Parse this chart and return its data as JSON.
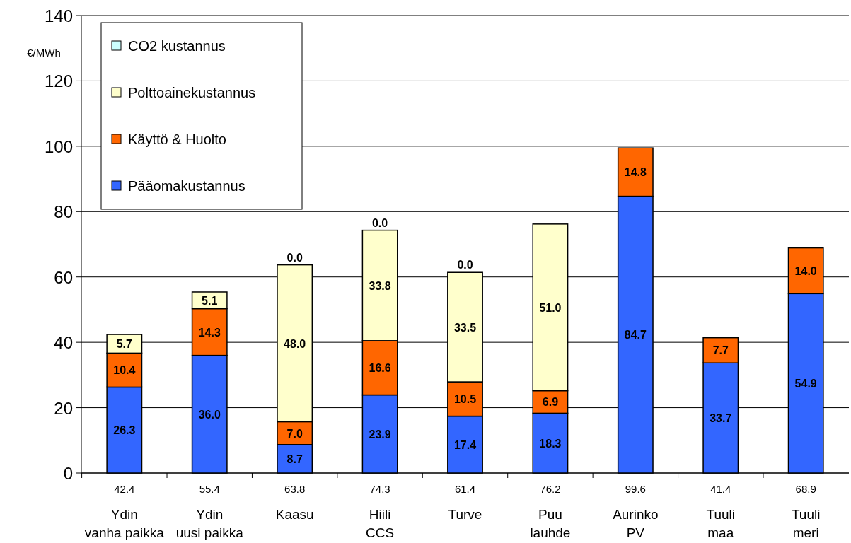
{
  "chart_data": {
    "type": "bar",
    "stacked": true,
    "ylabel": "€/MWh",
    "categories": [
      "Ydin\nvanha paikka",
      "Ydin\nuusi paikka",
      "Kaasu",
      "Hiili\nCCS",
      "Turve",
      "Puu\nlauhde",
      "Aurinko\nPV",
      "Tuuli\nmaa",
      "Tuuli\nmeri"
    ],
    "series": [
      {
        "name": "Pääomakustannus",
        "color": "#3366ff",
        "values": [
          26.3,
          36.0,
          8.7,
          23.9,
          17.4,
          18.3,
          84.7,
          33.7,
          54.9
        ],
        "value_labels": [
          "26.3",
          "36.0",
          "8.7",
          "23.9",
          "17.4",
          "18.3",
          "84.7",
          "33.7",
          "54.9"
        ]
      },
      {
        "name": "Käyttö & Huolto",
        "color": "#ff6600",
        "values": [
          10.4,
          14.3,
          7.0,
          16.6,
          10.5,
          6.9,
          14.8,
          7.7,
          14.0
        ],
        "value_labels": [
          "10.4",
          "14.3",
          "7.0",
          "16.6",
          "10.5",
          "6.9",
          "14.8",
          "7.7",
          "14.0"
        ]
      },
      {
        "name": "Polttoainekustannus",
        "color": "#ffffcc",
        "values": [
          5.7,
          5.1,
          48.0,
          33.8,
          33.5,
          51.0,
          null,
          null,
          null
        ],
        "value_labels": [
          "5.7",
          "5.1",
          "48.0",
          "33.8",
          "33.5",
          "51.0",
          null,
          null,
          null
        ]
      },
      {
        "name": "CO2 kustannus",
        "color": "#ccffff",
        "values": [
          null,
          null,
          0.0,
          0.0,
          0.0,
          null,
          null,
          null,
          null
        ],
        "value_labels": [
          null,
          null,
          "0.0",
          "0.0",
          "0.0",
          null,
          null,
          null,
          null
        ]
      }
    ],
    "totals": [
      "42.4",
      "55.4",
      "63.8",
      "74.3",
      "61.4",
      "76.2",
      "99.6",
      "41.4",
      "68.9"
    ],
    "ylim": [
      0,
      140
    ],
    "yticks": [
      0,
      20,
      40,
      60,
      80,
      100,
      120,
      140
    ],
    "grid": "y",
    "legend": "top left"
  }
}
